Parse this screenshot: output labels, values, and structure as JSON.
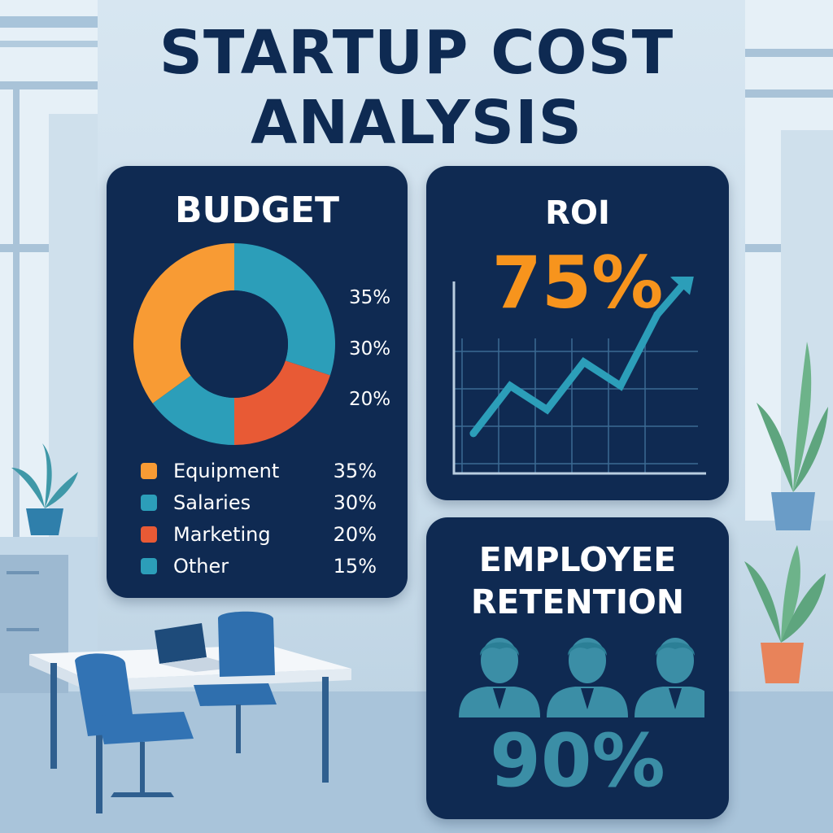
{
  "title_line1": "STARTUP COST",
  "title_line2": "ANALYSIS",
  "colors": {
    "panel": "#0f2a52",
    "orange": "#f89b34",
    "red": "#e85a35",
    "teal": "#2c9eb9",
    "retention_teal": "#3b8ea6",
    "roi_orange": "#f7941d"
  },
  "chart_data": [
    {
      "type": "pie",
      "title": "BUDGET",
      "categories": [
        "Equipment",
        "Salaries",
        "Marketing",
        "Other"
      ],
      "values": [
        35,
        30,
        20,
        15
      ],
      "value_labels": [
        "35%",
        "30%",
        "20%",
        "15%"
      ],
      "side_labels": [
        "35%",
        "30%",
        "20%"
      ],
      "slice_colors": [
        "#f89b34",
        "#2c9eb9",
        "#e85a35",
        "#2c9eb9"
      ],
      "donut": true
    },
    {
      "type": "line",
      "title": "ROI",
      "headline": "75%",
      "values": [
        1,
        3,
        2,
        4,
        3,
        6
      ],
      "ylim": [
        0,
        6.5
      ],
      "grid": true,
      "arrow": true
    }
  ],
  "retention": {
    "title_line1": "EMPLOYEE",
    "title_line2": "RETENTION",
    "value": "90%",
    "icon_count": 3
  }
}
